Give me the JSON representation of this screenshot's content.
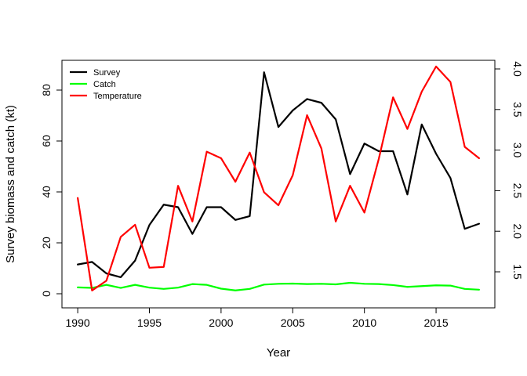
{
  "chart_data": {
    "type": "line",
    "title": "",
    "xlabel": "Year",
    "ylabel": "Survey biomass and catch (kt)",
    "y2label": "",
    "xlim": [
      1990,
      2018
    ],
    "ylim": [
      0,
      90
    ],
    "y2lim": [
      1.25,
      4.05
    ],
    "x_ticks": [
      1990,
      1995,
      2000,
      2005,
      2010,
      2015
    ],
    "y_ticks": [
      0,
      20,
      40,
      60,
      80
    ],
    "y2_ticks": [
      "1.5",
      "2.0",
      "2.5",
      "3.0",
      "3.5",
      "4.0"
    ],
    "legend": [
      "Survey",
      "Catch",
      "Temperature"
    ],
    "legend_position": "top-left",
    "x": [
      1990,
      1991,
      1992,
      1993,
      1994,
      1995,
      1996,
      1997,
      1998,
      1999,
      2000,
      2001,
      2002,
      2003,
      2004,
      2005,
      2006,
      2007,
      2008,
      2009,
      2010,
      2011,
      2012,
      2013,
      2014,
      2015,
      2016,
      2017,
      2018
    ],
    "series": [
      {
        "name": "Survey",
        "axis": "left",
        "color": "#000000",
        "values": [
          11.5,
          12.5,
          8,
          6.5,
          13,
          27,
          35,
          34,
          23.5,
          34,
          34,
          29,
          30.5,
          87,
          65.5,
          72,
          76.5,
          75,
          68.5,
          47,
          59,
          56,
          56,
          39,
          66.5,
          55,
          45.5,
          25.5,
          27.5
        ]
      },
      {
        "name": "Catch",
        "axis": "left",
        "color": "#00ff00",
        "values": [
          2.5,
          2.3,
          3.5,
          2.3,
          3.5,
          2.4,
          1.9,
          2.4,
          3.8,
          3.5,
          2,
          1.3,
          1.9,
          3.6,
          3.9,
          4,
          3.8,
          3.9,
          3.7,
          4.3,
          3.9,
          3.8,
          3.4,
          2.7,
          3,
          3.3,
          3.2,
          1.9,
          1.6
        ]
      },
      {
        "name": "Temperature",
        "axis": "right",
        "color": "#ff0000",
        "values": [
          2.41,
          1.27,
          1.39,
          1.93,
          2.08,
          1.55,
          1.56,
          2.56,
          2.12,
          2.98,
          2.9,
          2.61,
          2.97,
          2.48,
          2.32,
          2.69,
          3.43,
          3.02,
          2.12,
          2.56,
          2.23,
          2.89,
          3.65,
          3.26,
          3.72,
          4.03,
          3.84,
          3.04,
          2.9
        ]
      }
    ]
  }
}
